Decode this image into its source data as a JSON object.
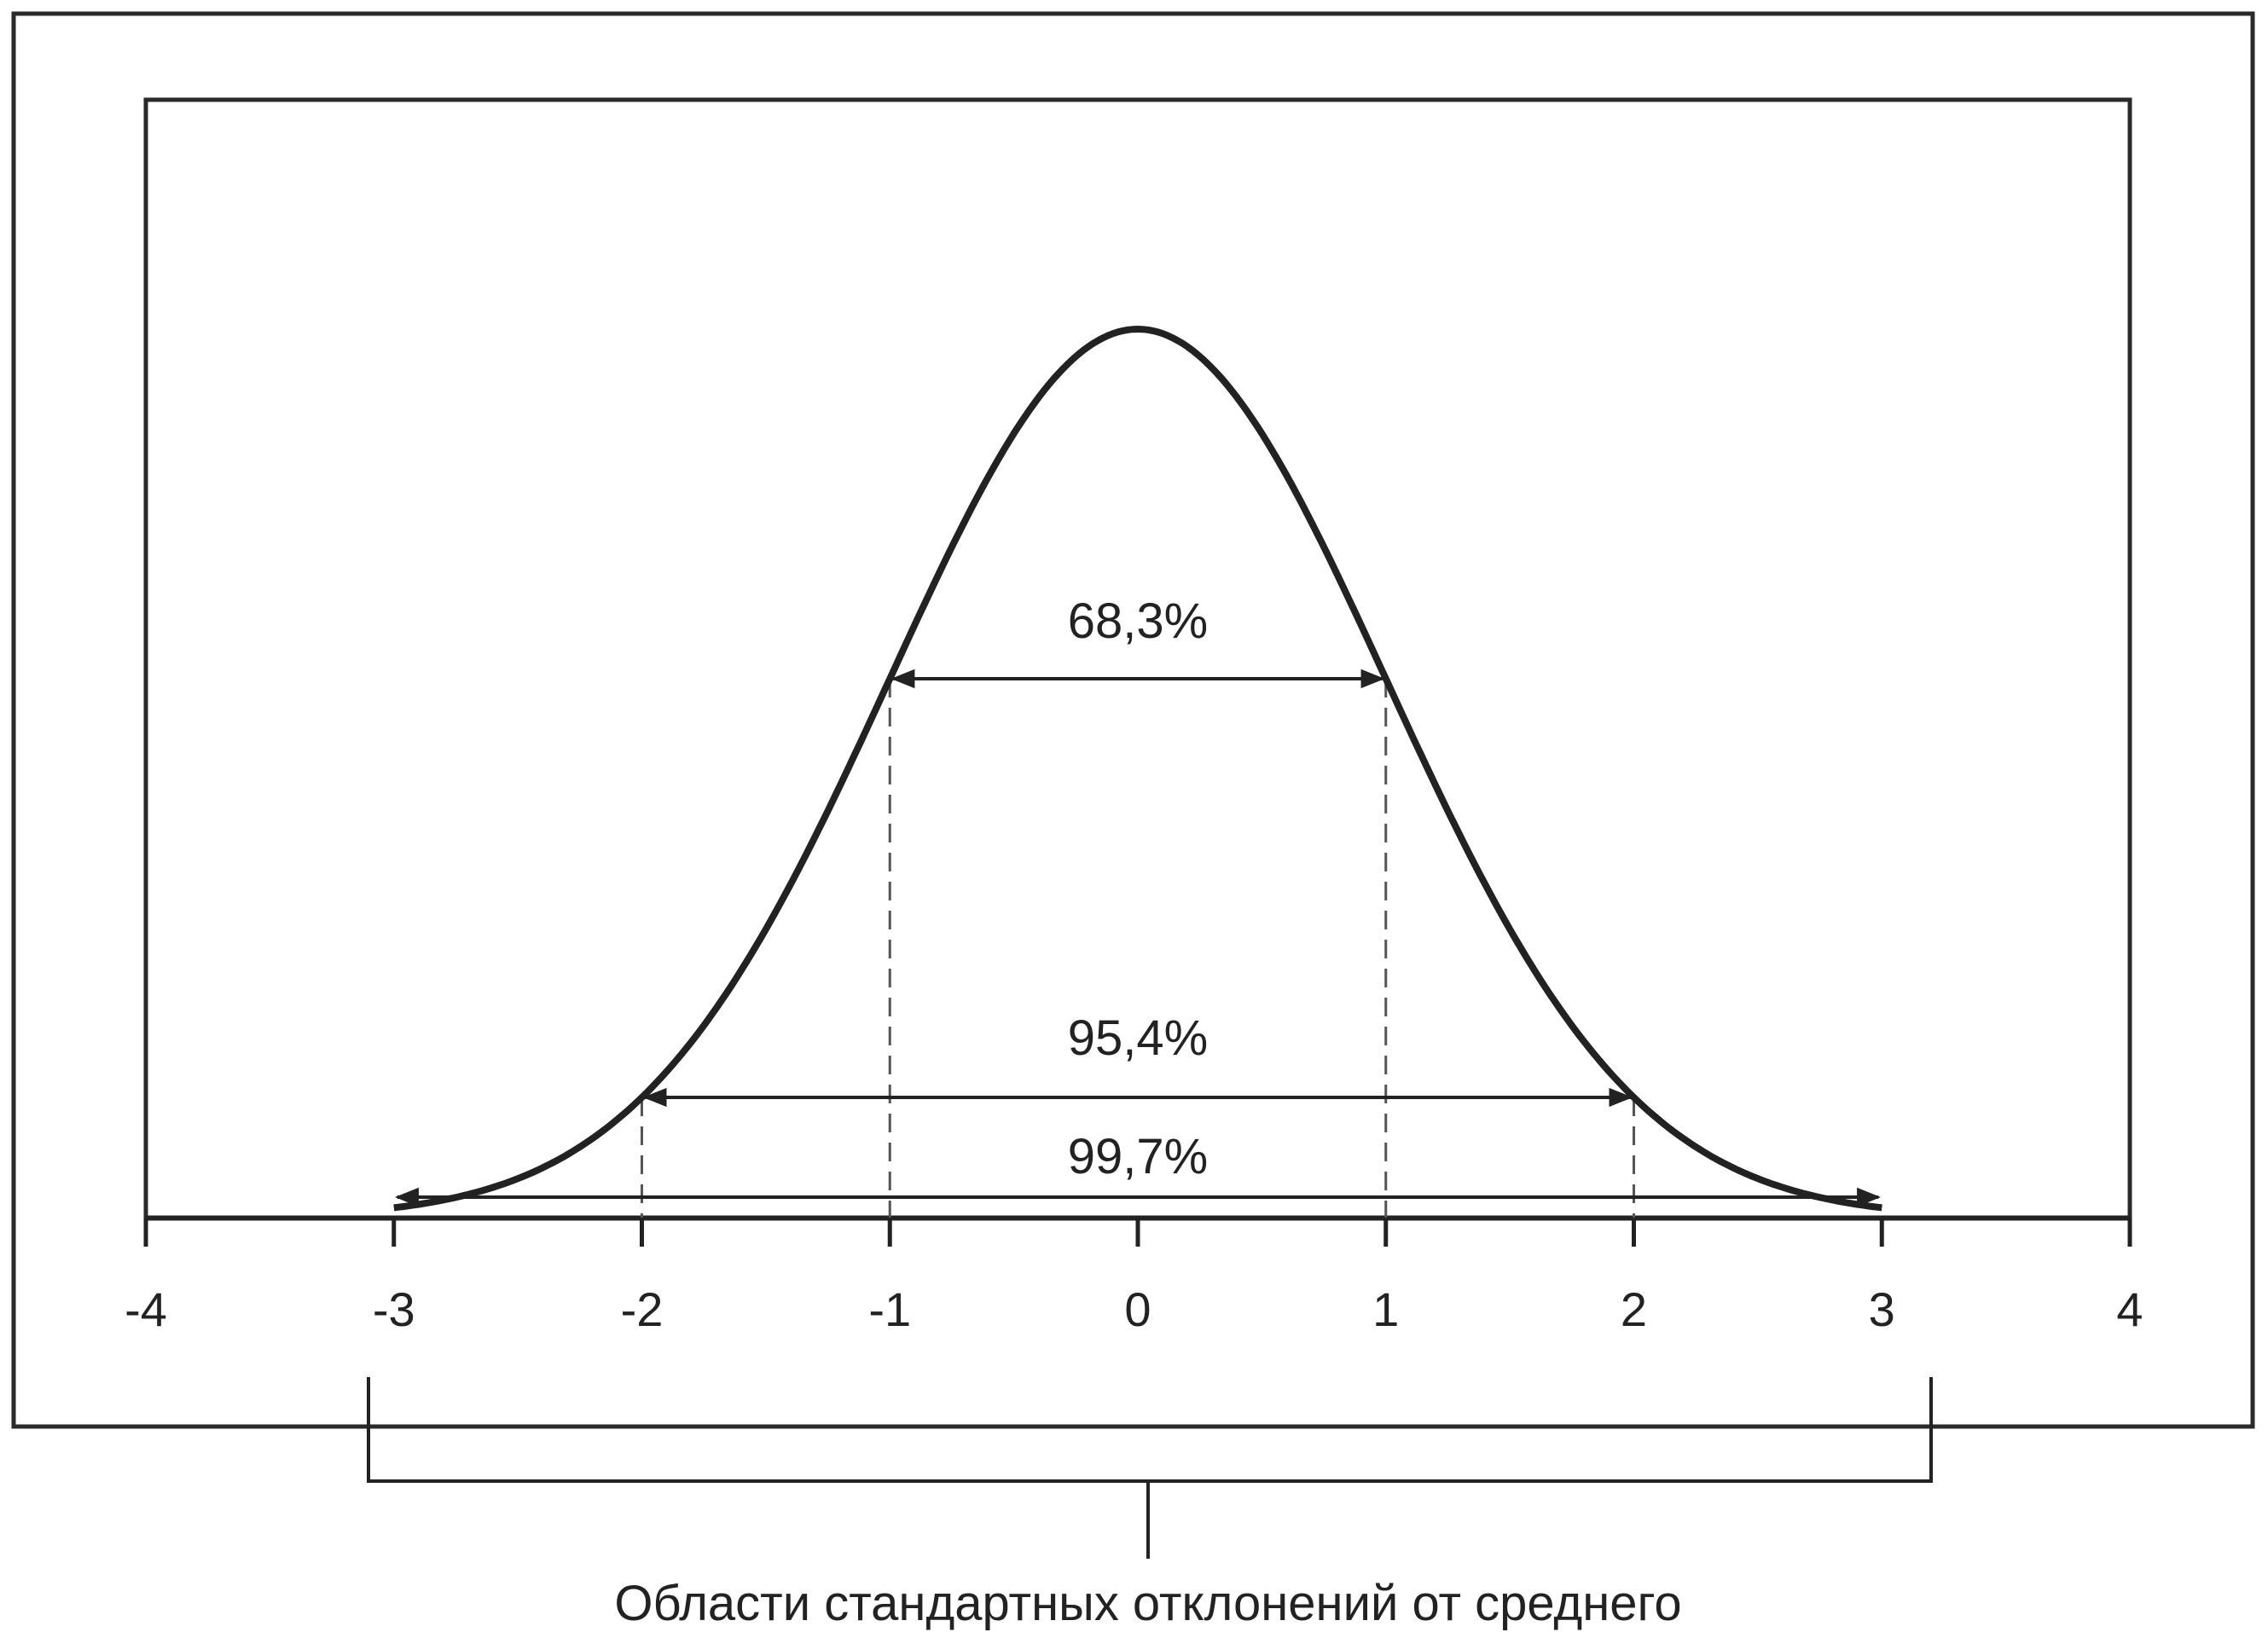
{
  "chart_data": {
    "type": "line",
    "title": "",
    "xlabel": "",
    "ylabel": "",
    "xlim": [
      -4,
      4
    ],
    "xticks": [
      "-4",
      "-3",
      "-2",
      "-1",
      "0",
      "1",
      "2",
      "3",
      "4"
    ],
    "distribution": "standard normal",
    "mean": 0,
    "sd": 1,
    "intervals": [
      {
        "from": -1,
        "to": 1,
        "label": "68,3%"
      },
      {
        "from": -2,
        "to": 2,
        "label": "95,4%"
      },
      {
        "from": -3,
        "to": 3,
        "label": "99,7%"
      }
    ],
    "grid": false
  },
  "caption": "Области стандартных отклонений от среднего"
}
